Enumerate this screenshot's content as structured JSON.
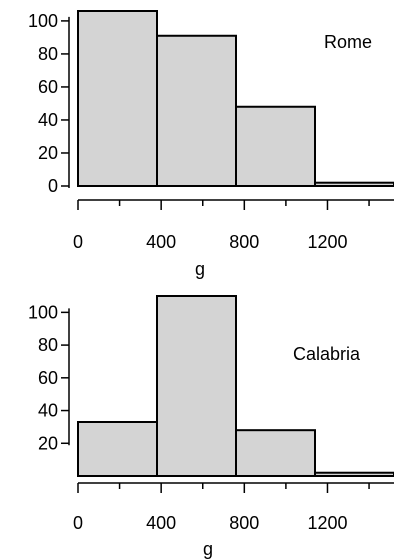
{
  "chart_data": [
    {
      "type": "bar",
      "title": "",
      "xlabel": "g",
      "ylabel": "",
      "panel_label": "Rome",
      "bin_edges": [
        0,
        380,
        760,
        1140,
        1520
      ],
      "values": [
        106,
        91,
        48,
        2
      ],
      "xlim": [
        0,
        1520
      ],
      "ylim": [
        0,
        106
      ],
      "x_ticks": [
        0,
        400,
        800,
        1200
      ],
      "y_ticks": [
        0,
        20,
        40,
        60,
        80,
        100
      ],
      "bar_color": "#d4d4d4",
      "grid": false,
      "legend": "none"
    },
    {
      "type": "bar",
      "title": "",
      "xlabel": "g",
      "ylabel": "",
      "panel_label": "Calabria",
      "bin_edges": [
        0,
        380,
        760,
        1140,
        1520
      ],
      "values": [
        33,
        110,
        28,
        2
      ],
      "xlim": [
        0,
        1520
      ],
      "ylim": [
        0,
        110
      ],
      "x_ticks": [
        0,
        400,
        800,
        1200
      ],
      "y_ticks": [
        20,
        40,
        60,
        80,
        100
      ],
      "bar_color": "#d4d4d4",
      "grid": false,
      "legend": "none"
    }
  ]
}
